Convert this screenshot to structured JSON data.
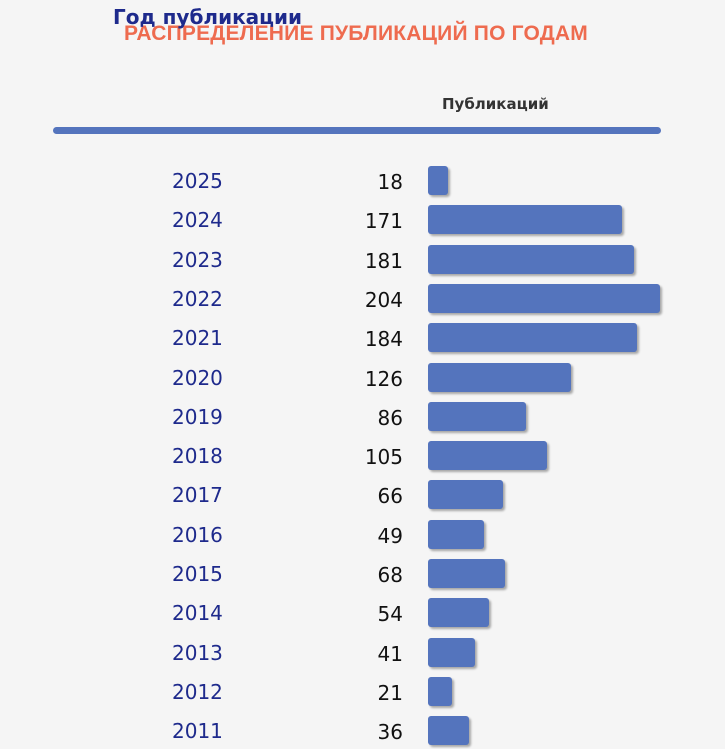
{
  "chart_data": {
    "type": "bar",
    "title": "РАСПРЕДЕЛЕНИЕ ПУБЛИКАЦИЙ ПО ГОДАМ",
    "xlabel": "Год публикации",
    "ylabel": "Публикаций",
    "categories": [
      "2025",
      "2024",
      "2023",
      "2022",
      "2021",
      "2020",
      "2019",
      "2018",
      "2017",
      "2016",
      "2015",
      "2014",
      "2013",
      "2012",
      "2011"
    ],
    "values": [
      18,
      171,
      181,
      204,
      184,
      126,
      86,
      105,
      66,
      49,
      68,
      54,
      41,
      21,
      36
    ],
    "orientation": "horizontal",
    "grid": false,
    "legend": "none",
    "colors": {
      "bar": "#5474bd",
      "title": "#ee6b4f",
      "year_link": "#1e2a8c",
      "header_rule": "#5474bd"
    }
  }
}
